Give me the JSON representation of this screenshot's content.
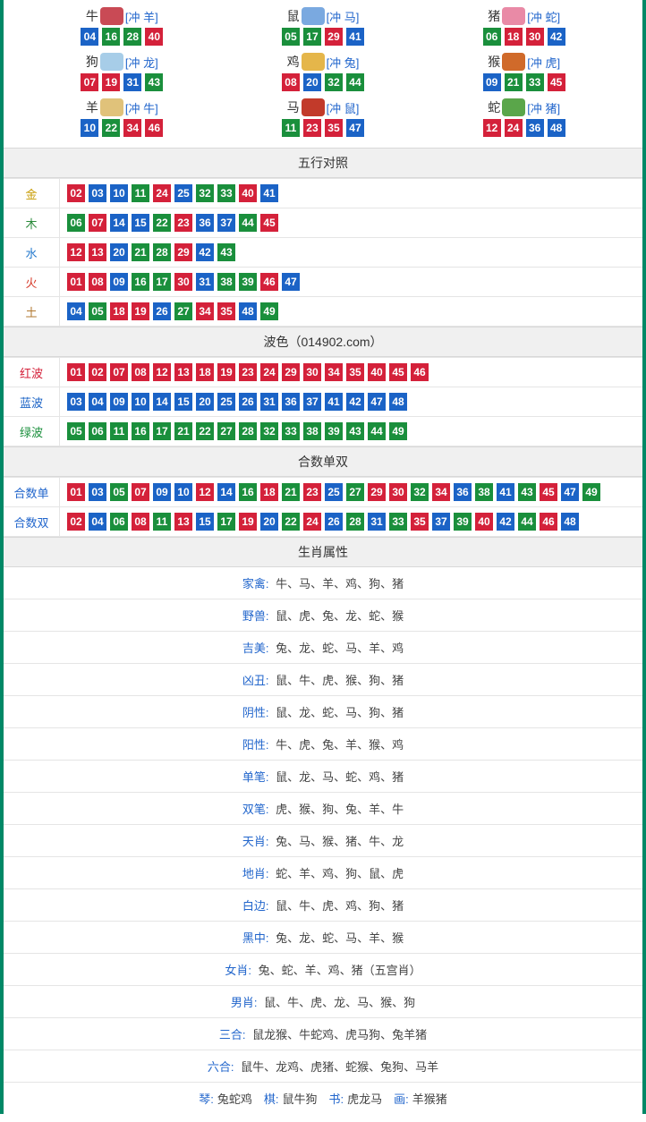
{
  "colors": {
    "border": "#008866",
    "red": "#d4213a",
    "blue": "#1b63c6",
    "green": "#1a8f3c",
    "header_bg": "#f0f0f0",
    "line": "#e5e5e5",
    "link": "#2266cc"
  },
  "zodiac": [
    {
      "name": "牛",
      "conflict": "[冲 羊]",
      "icon_color": "#c94a55",
      "balls": [
        {
          "n": "04",
          "c": "blue"
        },
        {
          "n": "16",
          "c": "green"
        },
        {
          "n": "28",
          "c": "green"
        },
        {
          "n": "40",
          "c": "red"
        }
      ]
    },
    {
      "name": "鼠",
      "conflict": "[冲 马]",
      "icon_color": "#7aa9e0",
      "balls": [
        {
          "n": "05",
          "c": "green"
        },
        {
          "n": "17",
          "c": "green"
        },
        {
          "n": "29",
          "c": "red"
        },
        {
          "n": "41",
          "c": "blue"
        }
      ]
    },
    {
      "name": "猪",
      "conflict": "[冲 蛇]",
      "icon_color": "#e98aa6",
      "balls": [
        {
          "n": "06",
          "c": "green"
        },
        {
          "n": "18",
          "c": "red"
        },
        {
          "n": "30",
          "c": "red"
        },
        {
          "n": "42",
          "c": "blue"
        }
      ]
    },
    {
      "name": "狗",
      "conflict": "[冲 龙]",
      "icon_color": "#a7cde8",
      "balls": [
        {
          "n": "07",
          "c": "red"
        },
        {
          "n": "19",
          "c": "red"
        },
        {
          "n": "31",
          "c": "blue"
        },
        {
          "n": "43",
          "c": "green"
        }
      ]
    },
    {
      "name": "鸡",
      "conflict": "[冲 兔]",
      "icon_color": "#e5b64a",
      "balls": [
        {
          "n": "08",
          "c": "red"
        },
        {
          "n": "20",
          "c": "blue"
        },
        {
          "n": "32",
          "c": "green"
        },
        {
          "n": "44",
          "c": "green"
        }
      ]
    },
    {
      "name": "猴",
      "conflict": "[冲 虎]",
      "icon_color": "#d06a2a",
      "balls": [
        {
          "n": "09",
          "c": "blue"
        },
        {
          "n": "21",
          "c": "green"
        },
        {
          "n": "33",
          "c": "green"
        },
        {
          "n": "45",
          "c": "red"
        }
      ]
    },
    {
      "name": "羊",
      "conflict": "[冲 牛]",
      "icon_color": "#e0c27a",
      "balls": [
        {
          "n": "10",
          "c": "blue"
        },
        {
          "n": "22",
          "c": "green"
        },
        {
          "n": "34",
          "c": "red"
        },
        {
          "n": "46",
          "c": "red"
        }
      ]
    },
    {
      "name": "马",
      "conflict": "[冲 鼠]",
      "icon_color": "#c23a2a",
      "balls": [
        {
          "n": "11",
          "c": "green"
        },
        {
          "n": "23",
          "c": "red"
        },
        {
          "n": "35",
          "c": "red"
        },
        {
          "n": "47",
          "c": "blue"
        }
      ]
    },
    {
      "name": "蛇",
      "conflict": "[冲 猪]",
      "icon_color": "#5aa64a",
      "balls": [
        {
          "n": "12",
          "c": "red"
        },
        {
          "n": "24",
          "c": "red"
        },
        {
          "n": "36",
          "c": "blue"
        },
        {
          "n": "48",
          "c": "blue"
        }
      ]
    }
  ],
  "sections": {
    "wuxing": {
      "title": "五行对照",
      "rows": [
        {
          "label": "金",
          "cls": "gold",
          "balls": [
            {
              "n": "02",
              "c": "red"
            },
            {
              "n": "03",
              "c": "blue"
            },
            {
              "n": "10",
              "c": "blue"
            },
            {
              "n": "11",
              "c": "green"
            },
            {
              "n": "24",
              "c": "red"
            },
            {
              "n": "25",
              "c": "blue"
            },
            {
              "n": "32",
              "c": "green"
            },
            {
              "n": "33",
              "c": "green"
            },
            {
              "n": "40",
              "c": "red"
            },
            {
              "n": "41",
              "c": "blue"
            }
          ]
        },
        {
          "label": "木",
          "cls": "wood",
          "balls": [
            {
              "n": "06",
              "c": "green"
            },
            {
              "n": "07",
              "c": "red"
            },
            {
              "n": "14",
              "c": "blue"
            },
            {
              "n": "15",
              "c": "blue"
            },
            {
              "n": "22",
              "c": "green"
            },
            {
              "n": "23",
              "c": "red"
            },
            {
              "n": "36",
              "c": "blue"
            },
            {
              "n": "37",
              "c": "blue"
            },
            {
              "n": "44",
              "c": "green"
            },
            {
              "n": "45",
              "c": "red"
            }
          ]
        },
        {
          "label": "水",
          "cls": "water",
          "balls": [
            {
              "n": "12",
              "c": "red"
            },
            {
              "n": "13",
              "c": "red"
            },
            {
              "n": "20",
              "c": "blue"
            },
            {
              "n": "21",
              "c": "green"
            },
            {
              "n": "28",
              "c": "green"
            },
            {
              "n": "29",
              "c": "red"
            },
            {
              "n": "42",
              "c": "blue"
            },
            {
              "n": "43",
              "c": "green"
            }
          ]
        },
        {
          "label": "火",
          "cls": "fire",
          "balls": [
            {
              "n": "01",
              "c": "red"
            },
            {
              "n": "08",
              "c": "red"
            },
            {
              "n": "09",
              "c": "blue"
            },
            {
              "n": "16",
              "c": "green"
            },
            {
              "n": "17",
              "c": "green"
            },
            {
              "n": "30",
              "c": "red"
            },
            {
              "n": "31",
              "c": "blue"
            },
            {
              "n": "38",
              "c": "green"
            },
            {
              "n": "39",
              "c": "green"
            },
            {
              "n": "46",
              "c": "red"
            },
            {
              "n": "47",
              "c": "blue"
            }
          ]
        },
        {
          "label": "土",
          "cls": "earth",
          "balls": [
            {
              "n": "04",
              "c": "blue"
            },
            {
              "n": "05",
              "c": "green"
            },
            {
              "n": "18",
              "c": "red"
            },
            {
              "n": "19",
              "c": "red"
            },
            {
              "n": "26",
              "c": "blue"
            },
            {
              "n": "27",
              "c": "green"
            },
            {
              "n": "34",
              "c": "red"
            },
            {
              "n": "35",
              "c": "red"
            },
            {
              "n": "48",
              "c": "blue"
            },
            {
              "n": "49",
              "c": "green"
            }
          ]
        }
      ]
    },
    "bose": {
      "title": "波色（014902.com）",
      "rows": [
        {
          "label": "红波",
          "cls": "red",
          "balls": [
            {
              "n": "01",
              "c": "red"
            },
            {
              "n": "02",
              "c": "red"
            },
            {
              "n": "07",
              "c": "red"
            },
            {
              "n": "08",
              "c": "red"
            },
            {
              "n": "12",
              "c": "red"
            },
            {
              "n": "13",
              "c": "red"
            },
            {
              "n": "18",
              "c": "red"
            },
            {
              "n": "19",
              "c": "red"
            },
            {
              "n": "23",
              "c": "red"
            },
            {
              "n": "24",
              "c": "red"
            },
            {
              "n": "29",
              "c": "red"
            },
            {
              "n": "30",
              "c": "red"
            },
            {
              "n": "34",
              "c": "red"
            },
            {
              "n": "35",
              "c": "red"
            },
            {
              "n": "40",
              "c": "red"
            },
            {
              "n": "45",
              "c": "red"
            },
            {
              "n": "46",
              "c": "red"
            }
          ]
        },
        {
          "label": "蓝波",
          "cls": "blue",
          "balls": [
            {
              "n": "03",
              "c": "blue"
            },
            {
              "n": "04",
              "c": "blue"
            },
            {
              "n": "09",
              "c": "blue"
            },
            {
              "n": "10",
              "c": "blue"
            },
            {
              "n": "14",
              "c": "blue"
            },
            {
              "n": "15",
              "c": "blue"
            },
            {
              "n": "20",
              "c": "blue"
            },
            {
              "n": "25",
              "c": "blue"
            },
            {
              "n": "26",
              "c": "blue"
            },
            {
              "n": "31",
              "c": "blue"
            },
            {
              "n": "36",
              "c": "blue"
            },
            {
              "n": "37",
              "c": "blue"
            },
            {
              "n": "41",
              "c": "blue"
            },
            {
              "n": "42",
              "c": "blue"
            },
            {
              "n": "47",
              "c": "blue"
            },
            {
              "n": "48",
              "c": "blue"
            }
          ]
        },
        {
          "label": "绿波",
          "cls": "green",
          "balls": [
            {
              "n": "05",
              "c": "green"
            },
            {
              "n": "06",
              "c": "green"
            },
            {
              "n": "11",
              "c": "green"
            },
            {
              "n": "16",
              "c": "green"
            },
            {
              "n": "17",
              "c": "green"
            },
            {
              "n": "21",
              "c": "green"
            },
            {
              "n": "22",
              "c": "green"
            },
            {
              "n": "27",
              "c": "green"
            },
            {
              "n": "28",
              "c": "green"
            },
            {
              "n": "32",
              "c": "green"
            },
            {
              "n": "33",
              "c": "green"
            },
            {
              "n": "38",
              "c": "green"
            },
            {
              "n": "39",
              "c": "green"
            },
            {
              "n": "43",
              "c": "green"
            },
            {
              "n": "44",
              "c": "green"
            },
            {
              "n": "49",
              "c": "green"
            }
          ]
        }
      ]
    },
    "heshu": {
      "title": "合数单双",
      "rows": [
        {
          "label": "合数单",
          "cls": "plain",
          "balls": [
            {
              "n": "01",
              "c": "red"
            },
            {
              "n": "03",
              "c": "blue"
            },
            {
              "n": "05",
              "c": "green"
            },
            {
              "n": "07",
              "c": "red"
            },
            {
              "n": "09",
              "c": "blue"
            },
            {
              "n": "10",
              "c": "blue"
            },
            {
              "n": "12",
              "c": "red"
            },
            {
              "n": "14",
              "c": "blue"
            },
            {
              "n": "16",
              "c": "green"
            },
            {
              "n": "18",
              "c": "red"
            },
            {
              "n": "21",
              "c": "green"
            },
            {
              "n": "23",
              "c": "red"
            },
            {
              "n": "25",
              "c": "blue"
            },
            {
              "n": "27",
              "c": "green"
            },
            {
              "n": "29",
              "c": "red"
            },
            {
              "n": "30",
              "c": "red"
            },
            {
              "n": "32",
              "c": "green"
            },
            {
              "n": "34",
              "c": "red"
            },
            {
              "n": "36",
              "c": "blue"
            },
            {
              "n": "38",
              "c": "green"
            },
            {
              "n": "41",
              "c": "blue"
            },
            {
              "n": "43",
              "c": "green"
            },
            {
              "n": "45",
              "c": "red"
            },
            {
              "n": "47",
              "c": "blue"
            },
            {
              "n": "49",
              "c": "green"
            }
          ]
        },
        {
          "label": "合数双",
          "cls": "plain",
          "balls": [
            {
              "n": "02",
              "c": "red"
            },
            {
              "n": "04",
              "c": "blue"
            },
            {
              "n": "06",
              "c": "green"
            },
            {
              "n": "08",
              "c": "red"
            },
            {
              "n": "11",
              "c": "green"
            },
            {
              "n": "13",
              "c": "red"
            },
            {
              "n": "15",
              "c": "blue"
            },
            {
              "n": "17",
              "c": "green"
            },
            {
              "n": "19",
              "c": "red"
            },
            {
              "n": "20",
              "c": "blue"
            },
            {
              "n": "22",
              "c": "green"
            },
            {
              "n": "24",
              "c": "red"
            },
            {
              "n": "26",
              "c": "blue"
            },
            {
              "n": "28",
              "c": "green"
            },
            {
              "n": "31",
              "c": "blue"
            },
            {
              "n": "33",
              "c": "green"
            },
            {
              "n": "35",
              "c": "red"
            },
            {
              "n": "37",
              "c": "blue"
            },
            {
              "n": "39",
              "c": "green"
            },
            {
              "n": "40",
              "c": "red"
            },
            {
              "n": "42",
              "c": "blue"
            },
            {
              "n": "44",
              "c": "green"
            },
            {
              "n": "46",
              "c": "red"
            },
            {
              "n": "48",
              "c": "blue"
            }
          ]
        }
      ]
    },
    "attrs": {
      "title": "生肖属性",
      "rows": [
        {
          "k": "家禽:",
          "v": "牛、马、羊、鸡、狗、猪"
        },
        {
          "k": "野兽:",
          "v": "鼠、虎、兔、龙、蛇、猴"
        },
        {
          "k": "吉美:",
          "v": "兔、龙、蛇、马、羊、鸡"
        },
        {
          "k": "凶丑:",
          "v": "鼠、牛、虎、猴、狗、猪"
        },
        {
          "k": "阴性:",
          "v": "鼠、龙、蛇、马、狗、猪"
        },
        {
          "k": "阳性:",
          "v": "牛、虎、兔、羊、猴、鸡"
        },
        {
          "k": "单笔:",
          "v": "鼠、龙、马、蛇、鸡、猪"
        },
        {
          "k": "双笔:",
          "v": "虎、猴、狗、兔、羊、牛"
        },
        {
          "k": "天肖:",
          "v": "兔、马、猴、猪、牛、龙"
        },
        {
          "k": "地肖:",
          "v": "蛇、羊、鸡、狗、鼠、虎"
        },
        {
          "k": "白边:",
          "v": "鼠、牛、虎、鸡、狗、猪"
        },
        {
          "k": "黑中:",
          "v": "兔、龙、蛇、马、羊、猴"
        },
        {
          "k": "女肖:",
          "v": "兔、蛇、羊、鸡、猪（五宫肖）"
        },
        {
          "k": "男肖:",
          "v": "鼠、牛、虎、龙、马、猴、狗"
        },
        {
          "k": "三合:",
          "v": "鼠龙猴、牛蛇鸡、虎马狗、兔羊猪"
        },
        {
          "k": "六合:",
          "v": "鼠牛、龙鸡、虎猪、蛇猴、兔狗、马羊"
        }
      ],
      "footer": [
        {
          "k": "琴:",
          "v": "兔蛇鸡"
        },
        {
          "k": "棋:",
          "v": "鼠牛狗"
        },
        {
          "k": "书:",
          "v": "虎龙马"
        },
        {
          "k": "画:",
          "v": "羊猴猪"
        }
      ]
    }
  }
}
